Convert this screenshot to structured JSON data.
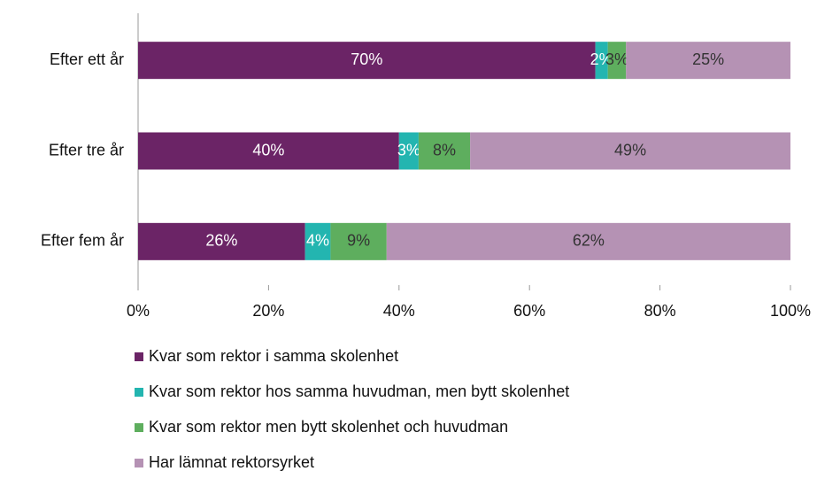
{
  "chart_data": {
    "type": "stacked_bar_horizontal",
    "categories": [
      "Efter ett år",
      "Efter tre år",
      "Efter fem år"
    ],
    "series": [
      {
        "name": "Kvar som rektor i samma skolenhet",
        "color": "#6b2466",
        "values": [
          70.1,
          40,
          25.6
        ],
        "value_labels": [
          "70%",
          "40%",
          "26%"
        ]
      },
      {
        "name": "Kvar som rektor hos samma huvudman, men bytt skolenhet",
        "color": "#23b5b0",
        "values": [
          1.9,
          3,
          3.9
        ],
        "value_labels": [
          "2%",
          "3%",
          "4%"
        ]
      },
      {
        "name": "Kvar som rektor men bytt skolenhet och huvudman",
        "color": "#5eae5e",
        "values": [
          2.8,
          7.9,
          8.6
        ],
        "value_labels": [
          "3%",
          "8%",
          "9%"
        ]
      },
      {
        "name": "Har lämnat rektorsyrket",
        "color": "#b592b4",
        "values": [
          25.2,
          49.1,
          61.9
        ],
        "value_labels": [
          "25%",
          "49%",
          "62%"
        ]
      }
    ],
    "xlim": [
      0,
      100
    ],
    "xticks": [
      {
        "value": 0,
        "label": "0%"
      },
      {
        "value": 20,
        "label": "20%"
      },
      {
        "value": 40,
        "label": "40%"
      },
      {
        "value": 60,
        "label": "60%"
      },
      {
        "value": 80,
        "label": "80%"
      },
      {
        "value": 100,
        "label": "100%"
      }
    ],
    "legend": "bottom"
  }
}
